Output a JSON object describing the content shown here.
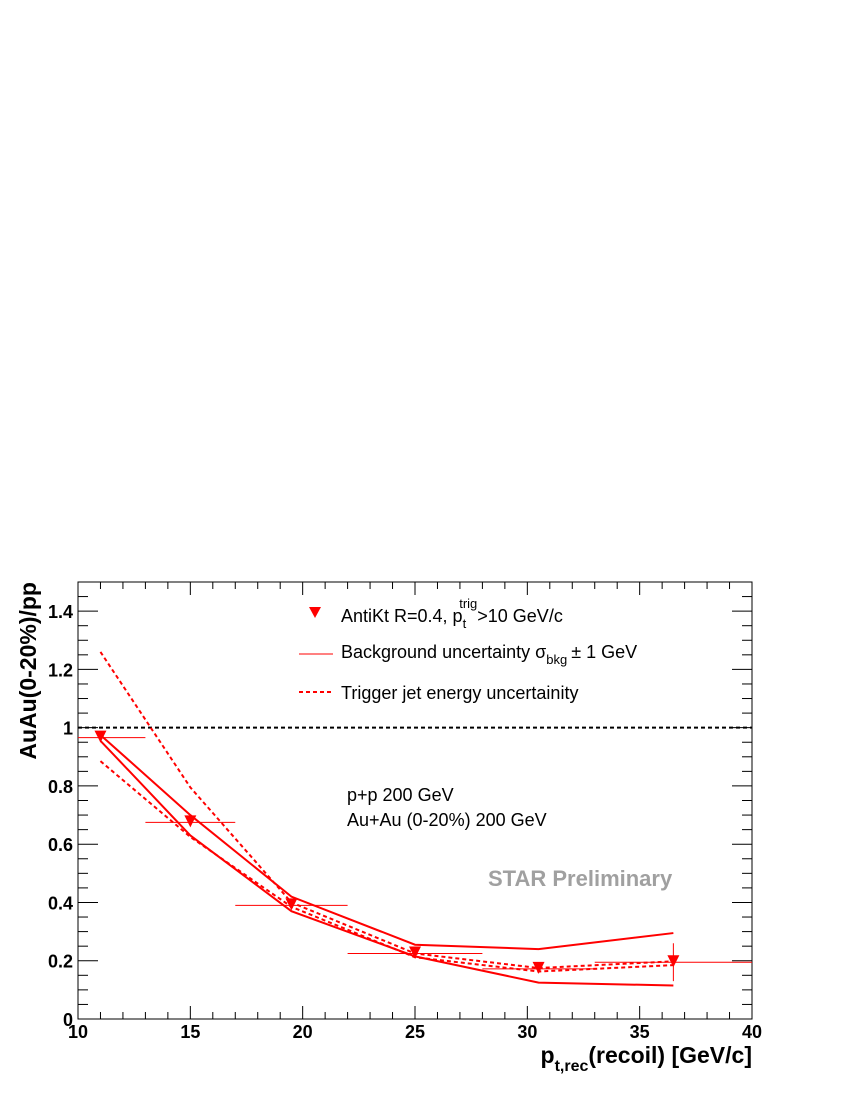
{
  "chart_data": {
    "type": "scatter",
    "xlabel_main": "p",
    "xlabel_sub": "t,rec",
    "xlabel_rest": "(recoil) [GeV/c]",
    "ylabel": "AuAu(0-20%)/pp",
    "xlim": [
      10,
      40
    ],
    "ylim": [
      0,
      1.5
    ],
    "x_ticks": [
      10,
      15,
      20,
      25,
      30,
      35,
      40
    ],
    "x_tick_labels": [
      "10",
      "15",
      "20",
      "25",
      "30",
      "35",
      "40"
    ],
    "y_ticks": [
      0,
      0.2,
      0.4,
      0.6,
      0.8,
      1,
      1.2,
      1.4
    ],
    "y_tick_labels": [
      "0",
      "0.2",
      "0.4",
      "0.6",
      "0.8",
      "1",
      "1.2",
      "1.4"
    ],
    "reference_line_y": 1,
    "color": "#ff0000",
    "points": {
      "x": [
        11,
        15,
        19.5,
        25,
        30.5,
        36.5
      ],
      "y": [
        0.966,
        0.675,
        0.39,
        0.225,
        0.172,
        0.195
      ],
      "x_low": [
        10,
        13,
        17,
        22,
        28,
        33
      ],
      "x_high": [
        13,
        17,
        22,
        28,
        33,
        40
      ],
      "y_err": [
        0,
        0,
        0,
        0,
        0,
        0.065
      ]
    },
    "bkg_upper": {
      "x": [
        11,
        15,
        19.5,
        25,
        30.5,
        36.5
      ],
      "y": [
        0.975,
        0.7,
        0.42,
        0.255,
        0.24,
        0.295
      ]
    },
    "bkg_lower": {
      "x": [
        11,
        15,
        19.5,
        25,
        30.5,
        36.5
      ],
      "y": [
        0.955,
        0.63,
        0.37,
        0.215,
        0.125,
        0.115
      ]
    },
    "trig_upper": {
      "x": [
        11,
        15,
        19.5,
        25,
        30.5,
        36.5
      ],
      "y": [
        1.26,
        0.795,
        0.4,
        0.225,
        0.175,
        0.198
      ]
    },
    "trig_lower": {
      "x": [
        11,
        15,
        19.5,
        25,
        30.5,
        36.5
      ],
      "y": [
        0.885,
        0.625,
        0.385,
        0.212,
        0.163,
        0.185
      ]
    },
    "legend": {
      "entry1_main": "AntiKt R=0.4,  p",
      "entry1_sup": "trig",
      "entry1_sub": "t",
      "entry1_tail": ">10 GeV/c",
      "entry2_main": "Background uncertainty σ",
      "entry2_sub": "bkg",
      "entry2_tail": "± 1 GeV",
      "entry3": "Trigger jet energy uncertainity"
    },
    "annotations": {
      "line1": "p+p 200 GeV",
      "line2": "Au+Au (0-20%) 200 GeV",
      "preliminary": "STAR Preliminary",
      "preliminary_color": "#a0a0a0"
    }
  }
}
